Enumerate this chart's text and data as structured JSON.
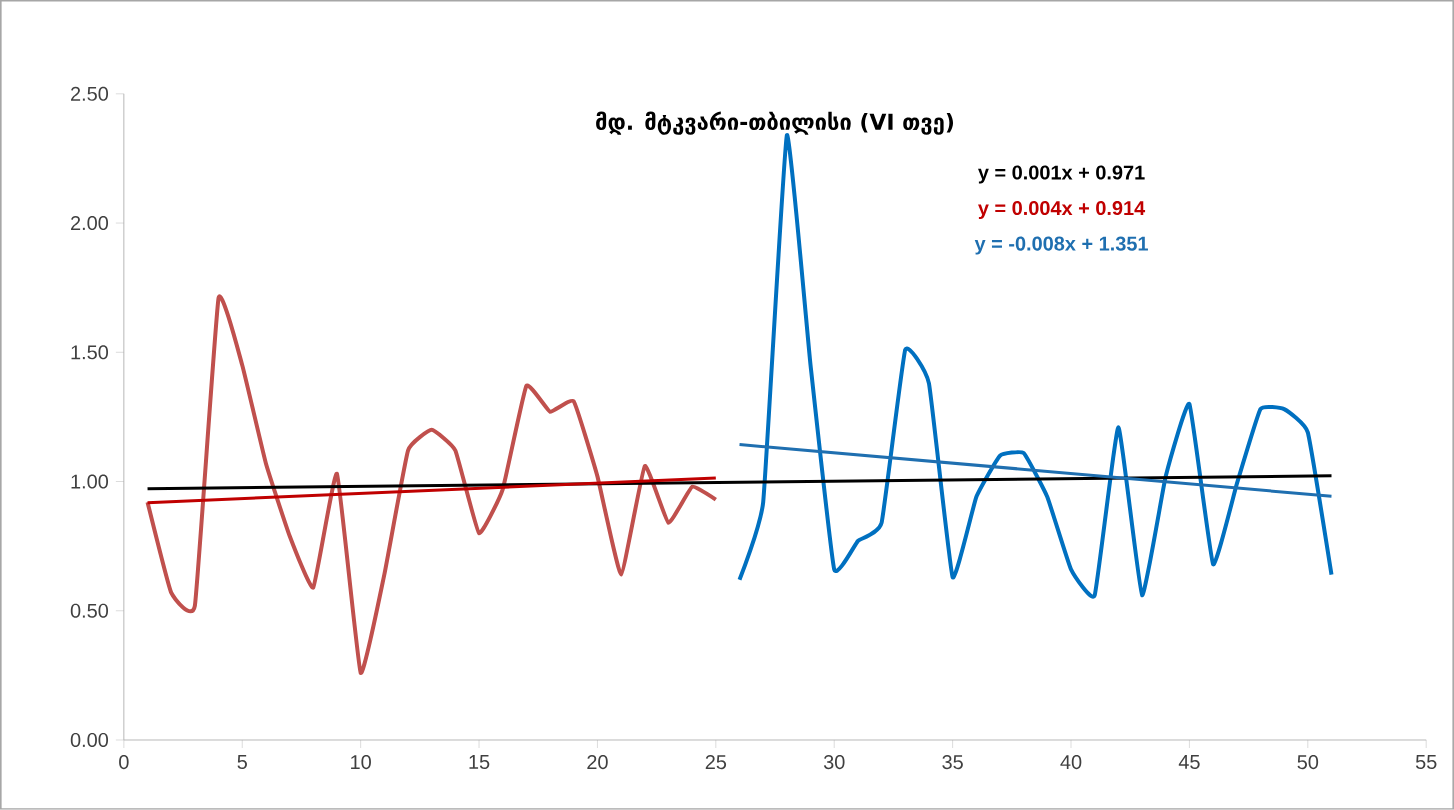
{
  "chart_data": {
    "type": "line",
    "title": "მდ. მტკვარი-თბილისი (VI თვე)",
    "xlim": [
      0,
      55
    ],
    "xticks": [
      0,
      5,
      10,
      15,
      20,
      25,
      30,
      35,
      40,
      45,
      50,
      55
    ],
    "ylim": [
      0,
      2.5
    ],
    "yticks": [
      {
        "value": 0,
        "label": "0.00"
      },
      {
        "value": 0.5,
        "label": "0.50"
      },
      {
        "value": 1,
        "label": "1.00"
      },
      {
        "value": 1.5,
        "label": "1.50"
      },
      {
        "value": 2,
        "label": "2.00"
      },
      {
        "value": 2.5,
        "label": "2.50"
      }
    ],
    "grid": false,
    "legend": false,
    "marker": "none",
    "line_style": "solid",
    "annotations": [
      "y = 0.001x + 0.971",
      "y = 0.004x + 0.914",
      "y = -0.008x + 1.351"
    ],
    "series": [
      {
        "color": "#c0504d",
        "x": [
          1,
          2,
          3,
          4,
          5,
          6,
          7,
          8,
          9,
          10,
          11,
          12,
          13,
          14,
          15,
          16,
          17,
          18,
          19,
          20,
          21,
          22,
          23,
          24,
          25
        ],
        "values": [
          0.92,
          0.57,
          0.52,
          1.71,
          1.45,
          1.07,
          0.79,
          0.59,
          1.03,
          0.26,
          0.64,
          1.12,
          1.2,
          1.12,
          0.8,
          0.97,
          1.37,
          1.27,
          1.31,
          1.02,
          0.64,
          1.06,
          0.84,
          0.98,
          0.93
        ]
      },
      {
        "color": "#0070c0",
        "x": [
          26,
          27,
          28,
          29,
          30,
          31,
          32,
          33,
          34,
          35,
          36,
          37,
          38,
          39,
          40,
          41,
          42,
          43,
          44,
          45,
          46,
          47,
          48,
          49,
          50,
          51
        ],
        "values": [
          0.62,
          0.92,
          2.34,
          1.45,
          0.66,
          0.77,
          0.84,
          1.51,
          1.38,
          0.63,
          0.94,
          1.1,
          1.11,
          0.94,
          0.66,
          0.56,
          1.21,
          0.56,
          1.02,
          1.3,
          0.68,
          0.99,
          1.28,
          1.28,
          1.19,
          0.64
        ]
      },
      {
        "color": "#000000",
        "x": [
          1,
          51
        ],
        "values": [
          0.972,
          1.022
        ]
      },
      {
        "color": "#c00000",
        "x": [
          1,
          25
        ],
        "values": [
          0.918,
          1.014
        ]
      },
      {
        "color": "#1f6fb0",
        "x": [
          26,
          51
        ],
        "values": [
          1.143,
          0.943
        ]
      }
    ]
  }
}
